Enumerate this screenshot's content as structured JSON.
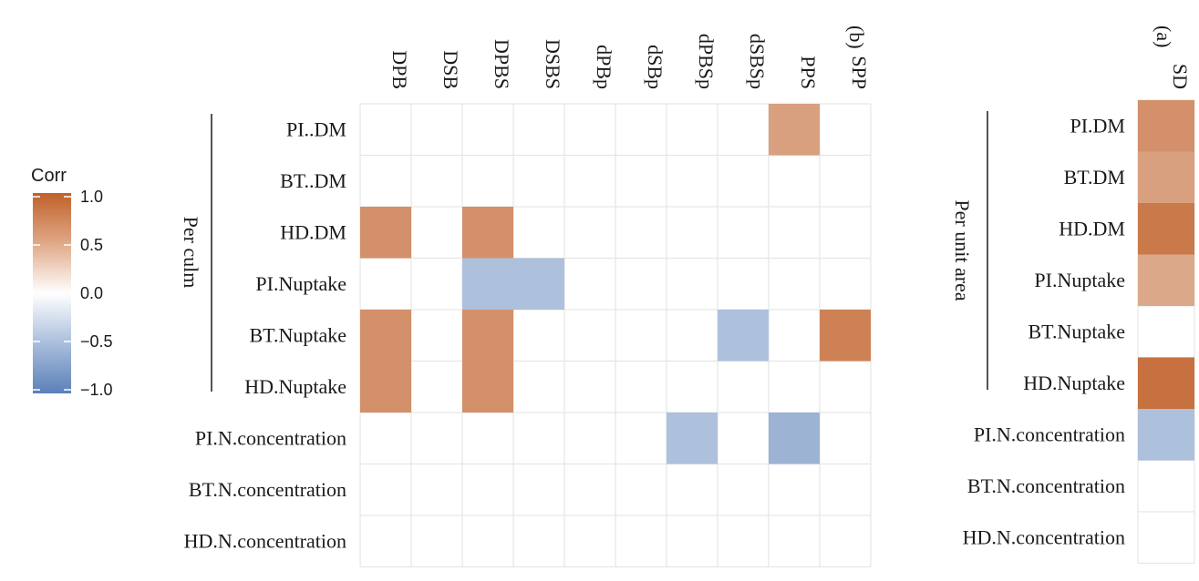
{
  "legend": {
    "title": "Corr",
    "ticks": [
      1.0,
      0.5,
      0.0,
      -0.5,
      -1.0
    ],
    "tick_labels": [
      "1.0",
      "0.5",
      "0.0",
      "−0.5",
      "−1.0"
    ],
    "colors": {
      "low": "#5b80b8",
      "mid": "#ffffff",
      "high": "#c0612a"
    }
  },
  "chart_data": [
    {
      "type": "heatmap",
      "panel": "(b)",
      "columns": [
        "DPB",
        "DSB",
        "DPBS",
        "DSBS",
        "dPBp",
        "dSBp",
        "dPBSp",
        "dSBSp",
        "PPS",
        "SPP"
      ],
      "rows": [
        "PI..DM",
        "BT..DM",
        "HD.DM",
        "PI.Nuptake",
        "BT.Nuptake",
        "HD.Nuptake",
        "PI.N.concentration",
        "BT.N.concentration",
        "HD.N.concentration"
      ],
      "group_label": "Per culm",
      "group_rows": [
        0,
        5
      ],
      "values": [
        [
          null,
          null,
          null,
          null,
          null,
          null,
          null,
          null,
          0.6,
          null
        ],
        [
          null,
          null,
          null,
          null,
          null,
          null,
          null,
          null,
          null,
          null
        ],
        [
          0.7,
          null,
          0.7,
          null,
          null,
          null,
          null,
          null,
          null,
          null
        ],
        [
          null,
          null,
          -0.5,
          -0.5,
          null,
          null,
          null,
          null,
          null,
          null
        ],
        [
          0.7,
          null,
          0.7,
          null,
          null,
          null,
          null,
          -0.5,
          null,
          0.8
        ],
        [
          0.7,
          null,
          0.7,
          null,
          null,
          null,
          null,
          null,
          null,
          null
        ],
        [
          null,
          null,
          null,
          null,
          null,
          null,
          -0.5,
          null,
          -0.6,
          null
        ],
        [
          null,
          null,
          null,
          null,
          null,
          null,
          null,
          null,
          null,
          null
        ],
        [
          null,
          null,
          null,
          null,
          null,
          null,
          null,
          null,
          null,
          null
        ]
      ],
      "value_range": [
        -1,
        1
      ]
    },
    {
      "type": "heatmap",
      "panel": "(a)",
      "columns": [
        "SD"
      ],
      "rows": [
        "PI.DM",
        "BT.DM",
        "HD.DM",
        "PI.Nuptake",
        "BT.Nuptake",
        "HD.Nuptake",
        "PI.N.concentration",
        "BT.N.concentration",
        "HD.N.concentration"
      ],
      "group_label": "Per unit area",
      "group_rows": [
        0,
        5
      ],
      "values": [
        [
          0.7
        ],
        [
          0.6
        ],
        [
          0.85
        ],
        [
          0.55
        ],
        [
          null
        ],
        [
          0.9
        ],
        [
          -0.5
        ],
        [
          null
        ],
        [
          null
        ]
      ],
      "value_range": [
        -1,
        1
      ]
    }
  ]
}
